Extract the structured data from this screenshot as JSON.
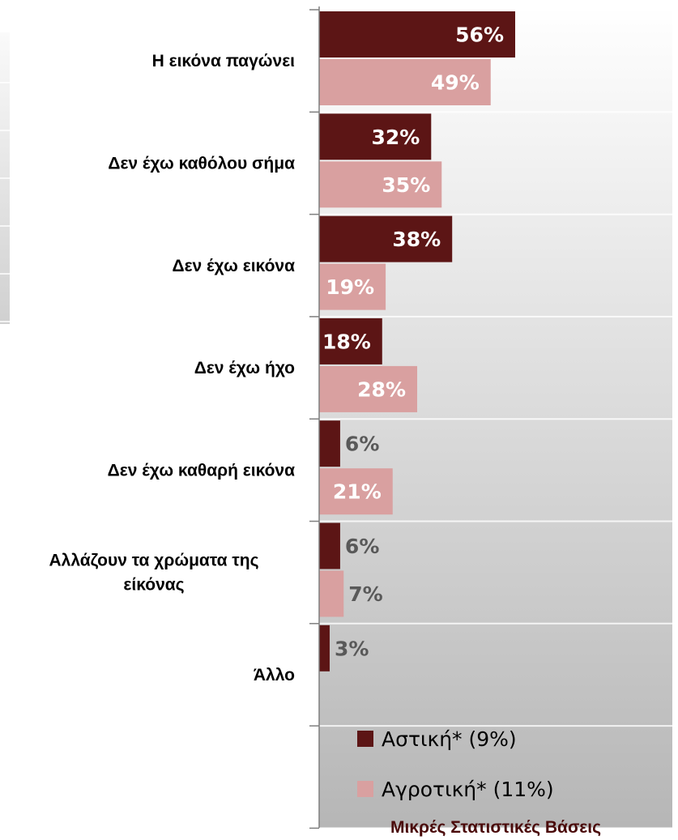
{
  "chart_data": {
    "type": "bar",
    "orientation": "horizontal",
    "categories": [
      "Η εικόνα παγώνει",
      "Δεν έχω καθόλου σήμα",
      "Δεν έχω εικόνα",
      "Δεν έχω ήχο",
      "Δεν έχω καθαρή εικόνα",
      "Αλλάζουν τα χρώματα της εικόνας",
      "Άλλο"
    ],
    "category_lines": [
      [
        "Η εικόνα παγώνει"
      ],
      [
        "Δεν έχω καθόλου σήμα"
      ],
      [
        "Δεν έχω εικόνα"
      ],
      [
        "Δεν έχω ήχο"
      ],
      [
        "Δεν έχω καθαρή εικόνα"
      ],
      [
        "Αλλάζουν τα χρώματα της",
        "είκόνας"
      ],
      [
        "Άλλο"
      ]
    ],
    "series": [
      {
        "name": "Αστική",
        "legend_label": "Αστική* (9%)",
        "color": "#5c1515",
        "values": [
          56,
          32,
          38,
          18,
          6,
          6,
          3
        ],
        "labels": [
          "56%",
          "32%",
          "38%",
          "18%",
          "6%",
          "6%",
          "3%"
        ]
      },
      {
        "name": "Αγροτική",
        "legend_label": "Αγροτική* (11%)",
        "color": "#d9a0a0",
        "values": [
          49,
          35,
          19,
          28,
          21,
          7,
          null
        ],
        "labels": [
          "49%",
          "35%",
          "19%",
          "28%",
          "21%",
          "7%",
          ""
        ]
      }
    ],
    "xlim": [
      0,
      100
    ],
    "legend_position": "bottom-right",
    "note": "Μικρές Στατιστικές Βάσεις",
    "grid": false
  },
  "colors": {
    "bg_top": "#ffffff",
    "bg_bottom": "#b8b8b8",
    "inside_label": "#ffffff",
    "outside_label": "#595959",
    "axis": "#7f7f7f"
  }
}
